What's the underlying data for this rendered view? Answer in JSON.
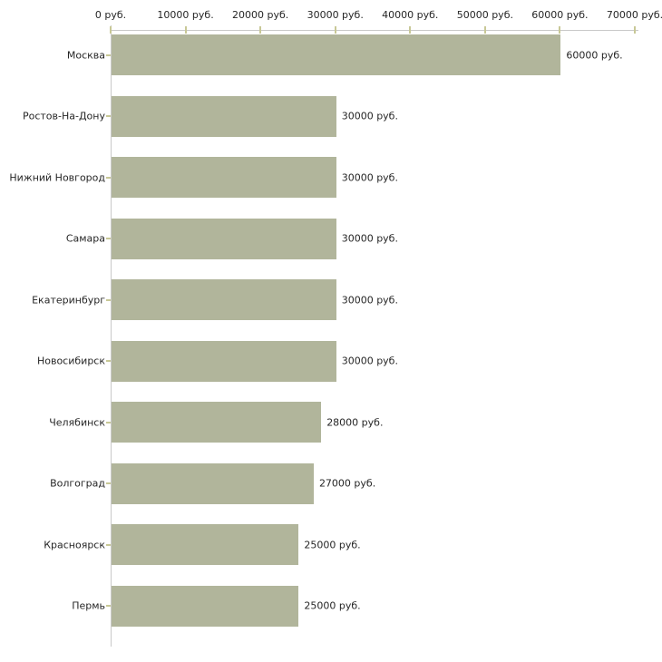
{
  "chart_data": {
    "type": "bar",
    "orientation": "horizontal",
    "title": "",
    "xlabel": "",
    "ylabel": "",
    "grid": false,
    "legend": false,
    "categories": [
      "Москва",
      "Ростов-На-Дону",
      "Нижний Новгород",
      "Самара",
      "Екатеринбург",
      "Новосибирск",
      "Челябинск",
      "Волгоград",
      "Красноярск",
      "Пермь"
    ],
    "values": [
      60000,
      30000,
      30000,
      30000,
      30000,
      30000,
      28000,
      27000,
      25000,
      25000
    ],
    "value_labels": [
      "60000 руб.",
      "30000 руб.",
      "30000 руб.",
      "30000 руб.",
      "30000 руб.",
      "30000 руб.",
      "28000 руб.",
      "27000 руб.",
      "25000 руб.",
      "25000 руб."
    ],
    "axis": {
      "position": "top",
      "min": 0,
      "max": 70000,
      "step": 10000,
      "tick_labels": [
        "0 руб.",
        "10000 руб.",
        "20000 руб.",
        "30000 руб.",
        "40000 руб.",
        "50000 руб.",
        "60000 руб.",
        "70000 руб."
      ]
    },
    "colors": {
      "bar": "#b1b59b",
      "axis_line": "#c9c9c9",
      "tick": "#c8c896",
      "text": "#262626",
      "background": "#ffffff"
    }
  }
}
